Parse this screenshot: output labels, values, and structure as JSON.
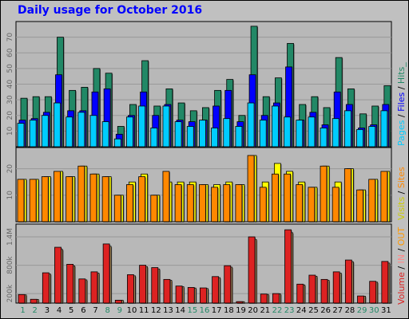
{
  "title": "Daily usage for October 2016",
  "colors": {
    "hits": "#228866",
    "files": "#0000ff",
    "pages": "#00ccff",
    "visits": "#ffff00",
    "sites": "#ff8800",
    "volume": "#dd2222",
    "in": "#ff8888",
    "out": "#ffbb66",
    "weekend": "#228866",
    "weekday": "#000000"
  },
  "legends": {
    "top": [
      {
        "text": "Pages",
        "color": "#00ccff"
      },
      {
        "text": " / ",
        "color": "#000000"
      },
      {
        "text": "Files",
        "color": "#0000ff"
      },
      {
        "text": " / ",
        "color": "#000000"
      },
      {
        "text": "Hits_",
        "color": "#228866"
      }
    ],
    "middle": [
      {
        "text": "Visits",
        "color": "#cccc00"
      },
      {
        "text": " / ",
        "color": "#000000"
      },
      {
        "text": "Sites",
        "color": "#ff8800"
      }
    ],
    "bottom": [
      {
        "text": "Volume",
        "color": "#dd2222"
      },
      {
        "text": " / ",
        "color": "#000000"
      },
      {
        "text": "IN",
        "color": "#ff8888"
      },
      {
        "text": " / ",
        "color": "#000000"
      },
      {
        "text": "OUT",
        "color": "#ff9900"
      }
    ]
  },
  "chart_data": [
    {
      "type": "bar",
      "panel": "hits-files-pages",
      "categories": [
        "1",
        "2",
        "3",
        "4",
        "5",
        "6",
        "7",
        "8",
        "9",
        "10",
        "11",
        "12",
        "13",
        "14",
        "15",
        "16",
        "17",
        "18",
        "19",
        "20",
        "21",
        "22",
        "23",
        "24",
        "25",
        "26",
        "27",
        "28",
        "29",
        "30",
        "31"
      ],
      "weekend_days": [
        "1",
        "2",
        "8",
        "9",
        "15",
        "16",
        "22",
        "23",
        "29",
        "30"
      ],
      "yticks": [
        "10",
        "20",
        "30",
        "40",
        "50",
        "60",
        "70"
      ],
      "ylim": [
        0,
        80
      ],
      "series": [
        {
          "name": "Hits",
          "values": [
            31,
            32,
            32,
            70,
            36,
            38,
            50,
            47,
            13,
            27,
            55,
            26,
            37,
            28,
            23,
            25,
            36,
            43,
            20,
            77,
            32,
            44,
            66,
            27,
            32,
            25,
            57,
            37,
            21,
            26,
            39
          ]
        },
        {
          "name": "Files",
          "values": [
            17,
            18,
            22,
            46,
            23,
            23,
            35,
            37,
            8,
            20,
            35,
            20,
            27,
            17,
            16,
            17,
            26,
            36,
            16,
            46,
            20,
            28,
            51,
            17,
            22,
            14,
            35,
            27,
            12,
            14,
            27
          ]
        },
        {
          "name": "Pages",
          "values": [
            15,
            17,
            20,
            28,
            19,
            22,
            20,
            16,
            5,
            19,
            26,
            12,
            26,
            16,
            13,
            17,
            12,
            18,
            13,
            28,
            17,
            26,
            19,
            17,
            19,
            12,
            18,
            23,
            11,
            13,
            23
          ]
        }
      ]
    },
    {
      "type": "bar",
      "panel": "visits-sites",
      "categories": [
        "1",
        "2",
        "3",
        "4",
        "5",
        "6",
        "7",
        "8",
        "9",
        "10",
        "11",
        "12",
        "13",
        "14",
        "15",
        "16",
        "17",
        "18",
        "19",
        "20",
        "21",
        "22",
        "23",
        "24",
        "25",
        "26",
        "27",
        "28",
        "29",
        "30",
        "31"
      ],
      "yticks": [
        "10",
        "20"
      ],
      "ylim": [
        0,
        28
      ],
      "series": [
        {
          "name": "Visits",
          "values": [
            16,
            16,
            17,
            19,
            17,
            21,
            18,
            17,
            10,
            15,
            18,
            10,
            15,
            15,
            15,
            14,
            14,
            15,
            14,
            25,
            15,
            22,
            19,
            15,
            13,
            21,
            15,
            20,
            12,
            16,
            19
          ]
        },
        {
          "name": "Sites",
          "values": [
            16,
            16,
            17,
            19,
            17,
            21,
            18,
            17,
            10,
            14,
            17,
            10,
            19,
            14,
            14,
            14,
            13,
            14,
            14,
            25,
            13,
            18,
            18,
            14,
            13,
            21,
            13,
            20,
            12,
            16,
            19
          ]
        }
      ]
    },
    {
      "type": "bar",
      "panel": "volume",
      "categories": [
        "1",
        "2",
        "3",
        "4",
        "5",
        "6",
        "7",
        "8",
        "9",
        "10",
        "11",
        "12",
        "13",
        "14",
        "15",
        "16",
        "17",
        "18",
        "19",
        "20",
        "21",
        "22",
        "23",
        "24",
        "25",
        "26",
        "27",
        "28",
        "29",
        "30",
        "31"
      ],
      "yticks": [
        "200k",
        "800k",
        "1.4M"
      ],
      "ylim": [
        0,
        1670000
      ],
      "series": [
        {
          "name": "Volume",
          "values": [
            180000,
            80000,
            640000,
            1180000,
            820000,
            510000,
            660000,
            1250000,
            60000,
            600000,
            800000,
            750000,
            500000,
            360000,
            330000,
            320000,
            560000,
            790000,
            30000,
            1400000,
            190000,
            200000,
            1550000,
            400000,
            590000,
            500000,
            660000,
            910000,
            150000,
            460000,
            880000
          ]
        }
      ]
    }
  ]
}
